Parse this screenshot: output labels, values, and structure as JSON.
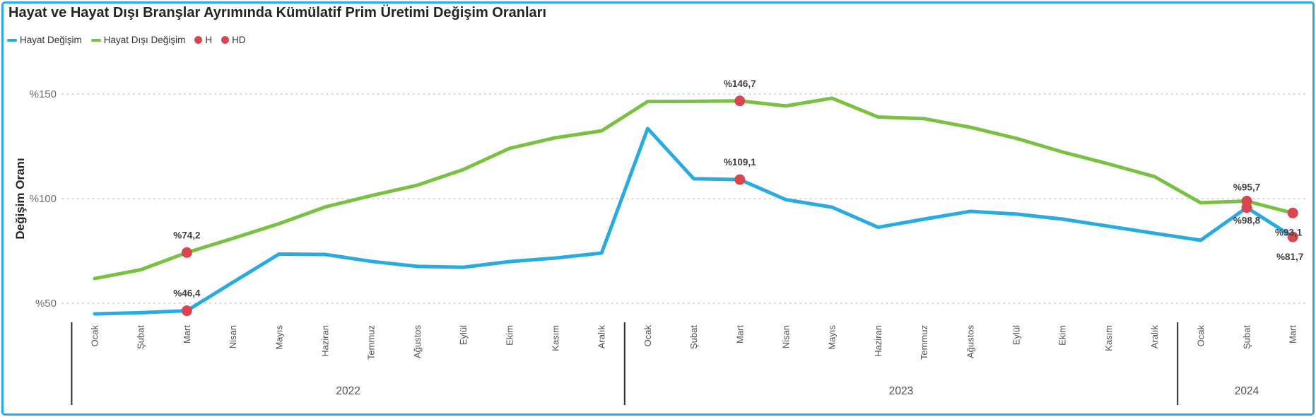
{
  "card": {
    "title": "Hayat ve Hayat Dışı Branşlar Ayrımında Kümülatif Prim Üretimi Değişim Oranları",
    "border_color": "#29ABE2",
    "background": "#FFFFFF"
  },
  "legend": {
    "items": [
      {
        "label": "Hayat Değişim",
        "marker": "line",
        "color": "#29ABE2"
      },
      {
        "label": "Hayat Dışı Değişim",
        "marker": "line",
        "color": "#7AC143"
      },
      {
        "label": "H",
        "marker": "dot",
        "color": "#D8464F"
      },
      {
        "label": "HD",
        "marker": "dot",
        "color": "#D8464F"
      }
    ]
  },
  "chart_data": {
    "type": "line",
    "title": "Hayat ve Hayat Dışı Branşlar Ayrımında Kümülatif Prim Üretimi Değişim Oranları",
    "xlabel": "",
    "ylabel": "Değişim Oranı",
    "ylim": [
      40,
      160
    ],
    "grid": "dotted-horizontal",
    "grid_color": "#C9C9C9",
    "y_ticks": [
      {
        "label": "%50",
        "value": 50
      },
      {
        "label": "%100",
        "value": 100
      },
      {
        "label": "%150",
        "value": 150
      }
    ],
    "categories": [
      "Ocak",
      "Şubat",
      "Mart",
      "Nisan",
      "Mayıs",
      "Haziran",
      "Temmuz",
      "Ağustos",
      "Eylül",
      "Ekim",
      "Kasım",
      "Aralık",
      "Ocak",
      "Şubat",
      "Mart",
      "Nisan",
      "Mayıs",
      "Haziran",
      "Temmuz",
      "Ağustos",
      "Eylül",
      "Ekim",
      "Kasım",
      "Aralık",
      "Ocak",
      "Şubat",
      "Mart"
    ],
    "year_groups": [
      {
        "label": "2022",
        "from": 0,
        "to": 11
      },
      {
        "label": "2023",
        "from": 12,
        "to": 23
      },
      {
        "label": "2024",
        "from": 24,
        "to": 26
      }
    ],
    "series": [
      {
        "name": "Hayat Değişim",
        "short": "H",
        "color": "#29ABE2",
        "values": [
          44.9,
          45.5,
          46.4,
          60.0,
          73.5,
          73.3,
          70.0,
          67.6,
          67.2,
          69.9,
          71.6,
          74.0,
          133.5,
          109.5,
          109.1,
          99.5,
          95.9,
          86.3,
          90.2,
          93.9,
          92.6,
          90.2,
          86.8,
          83.4,
          80.1,
          95.7,
          81.7
        ]
      },
      {
        "name": "Hayat Dışı Değişim",
        "short": "HD",
        "color": "#7AC143",
        "values": [
          61.8,
          66.0,
          74.2,
          81.0,
          88.0,
          96.0,
          101.4,
          106.4,
          113.9,
          124.0,
          129.1,
          132.4,
          146.4,
          146.5,
          146.7,
          144.3,
          148.0,
          139.0,
          138.2,
          134.1,
          128.8,
          122.3,
          116.6,
          110.5,
          98.0,
          98.8,
          93.1
        ]
      }
    ],
    "markers": {
      "color": "#D8464F",
      "points": [
        {
          "series": "HD",
          "index": 2,
          "value": 74.2,
          "label": "%74,2"
        },
        {
          "series": "H",
          "index": 2,
          "value": 46.4,
          "label": "%46,4"
        },
        {
          "series": "HD",
          "index": 14,
          "value": 146.7,
          "label": "%146,7"
        },
        {
          "series": "H",
          "index": 14,
          "value": 109.1,
          "label": "%109,1"
        },
        {
          "series": "H",
          "index": 25,
          "value": 95.7,
          "label": "%95,7"
        },
        {
          "series": "HD",
          "index": 25,
          "value": 98.8,
          "label": "%98,8"
        },
        {
          "series": "HD",
          "index": 26,
          "value": 93.1,
          "label": "%93,1"
        },
        {
          "series": "H",
          "index": 26,
          "value": 81.7,
          "label": "%81,7"
        }
      ]
    }
  }
}
